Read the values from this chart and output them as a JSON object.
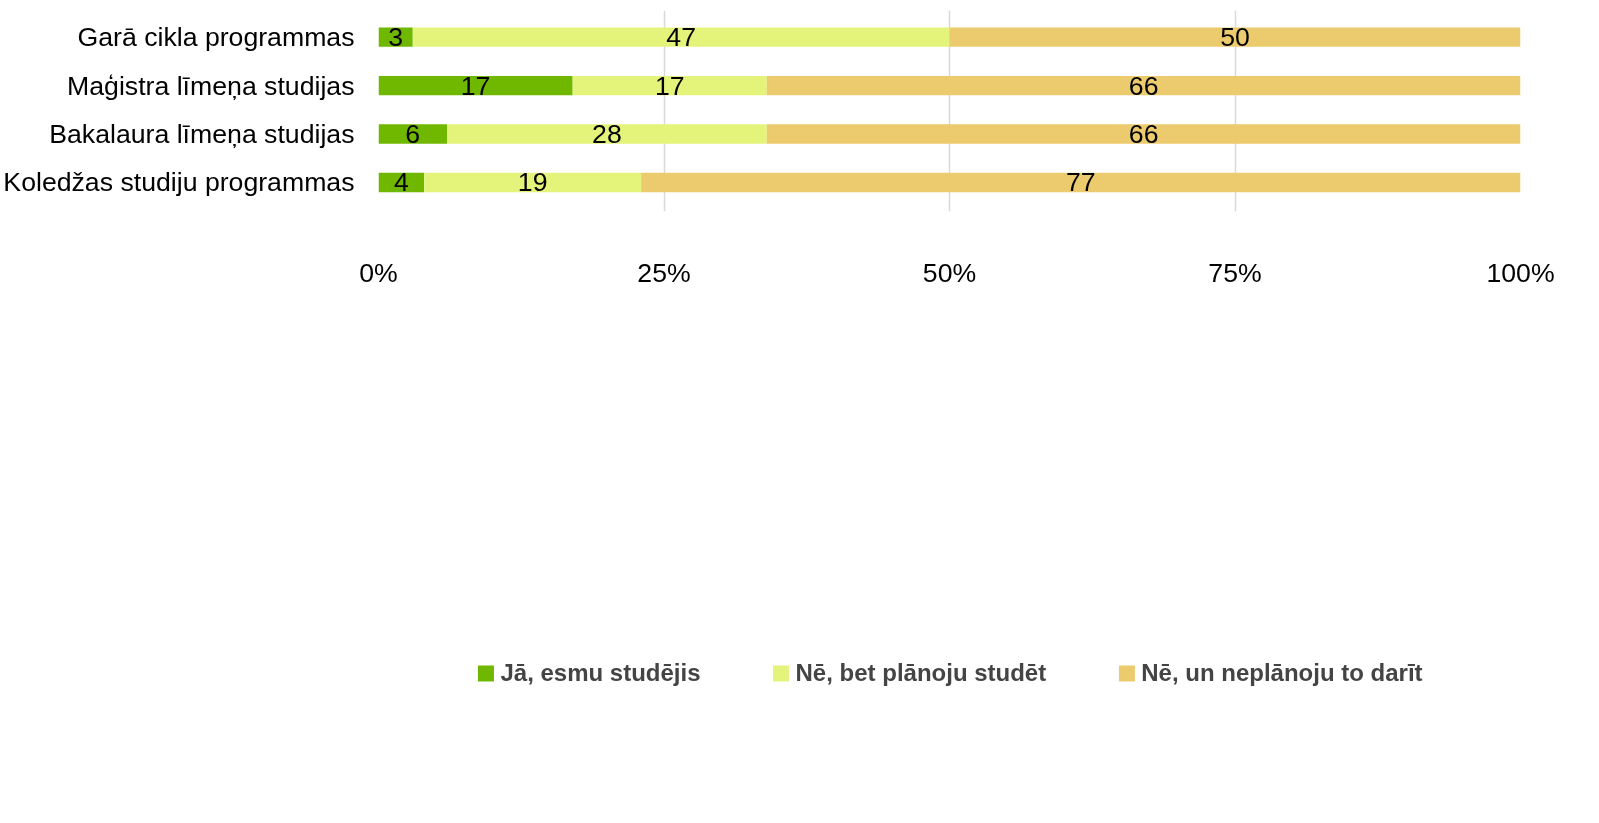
{
  "chart_data": {
    "type": "bar",
    "orientation": "horizontal",
    "stacked": true,
    "categories": [
      "Garā cikla programmas",
      "Maģistra līmeņa studijas",
      "Bakalaura līmeņa studijas",
      "Koledžas studiju programmas"
    ],
    "series": [
      {
        "name": "Jā, esmu studējis",
        "color": "#70b800",
        "values": [
          3,
          17,
          6,
          4
        ]
      },
      {
        "name": "Nē, bet plānoju studēt",
        "color": "#e4f47a",
        "values": [
          47,
          17,
          28,
          19
        ]
      },
      {
        "name": "Nē, un neplānoju to darīt",
        "color": "#ecca6e",
        "values": [
          50,
          66,
          66,
          77
        ]
      }
    ],
    "xlim": [
      0,
      100
    ],
    "xticks": [
      {
        "value": 0,
        "label": "0%"
      },
      {
        "value": 25,
        "label": "25%"
      },
      {
        "value": 50,
        "label": "50%"
      },
      {
        "value": 75,
        "label": "75%"
      },
      {
        "value": 100,
        "label": "100%"
      }
    ],
    "grid": "x",
    "data_labels": true,
    "legend": "bottom"
  }
}
